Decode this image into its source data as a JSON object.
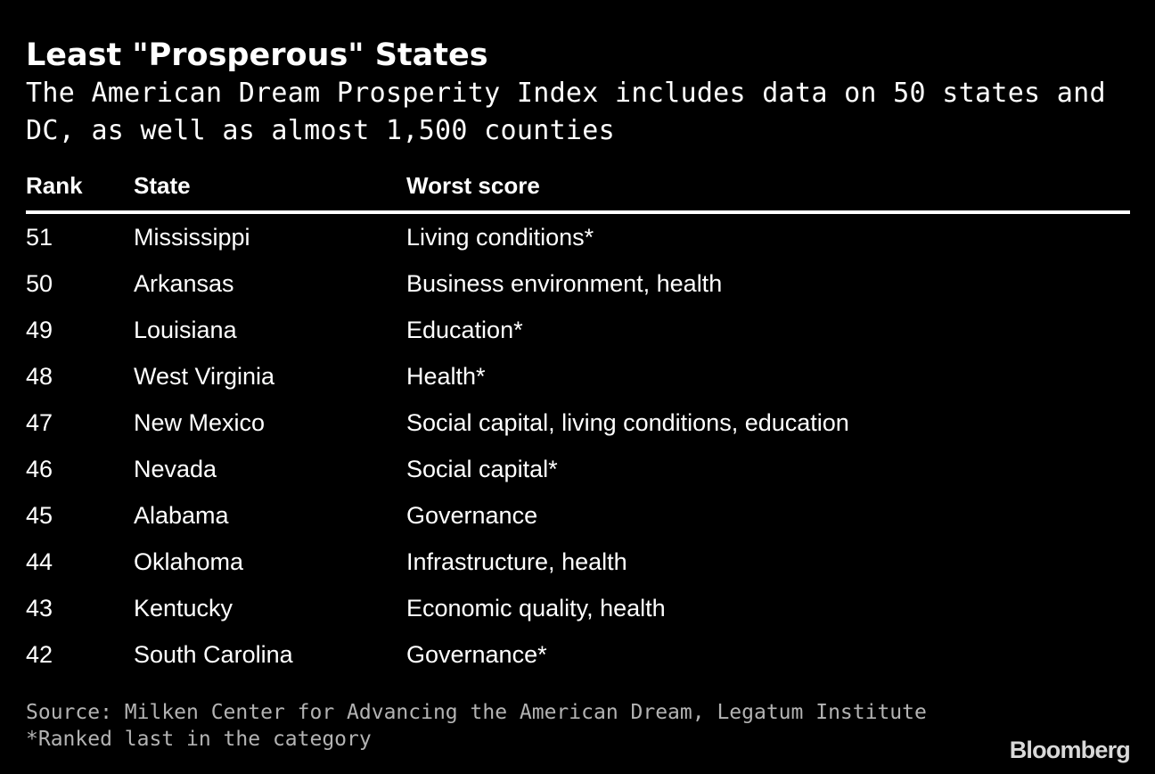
{
  "title": "Least \"Prosperous\" States",
  "subtitle": "The American Dream Prosperity Index includes data on 50 states and DC, as well as almost 1,500 counties",
  "chart_data": {
    "type": "table",
    "title": "Least \"Prosperous\" States",
    "subtitle": "The American Dream Prosperity Index includes data on 50 states and DC, as well as almost 1,500 counties",
    "columns": [
      "Rank",
      "State",
      "Worst score"
    ],
    "rows": [
      [
        "51",
        "Mississippi",
        "Living conditions*"
      ],
      [
        "50",
        "Arkansas",
        "Business environment, health"
      ],
      [
        "49",
        "Louisiana",
        "Education*"
      ],
      [
        "48",
        "West Virginia",
        "Health*"
      ],
      [
        "47",
        "New Mexico",
        "Social capital, living conditions, education"
      ],
      [
        "46",
        "Nevada",
        "Social capital*"
      ],
      [
        "45",
        "Alabama",
        "Governance"
      ],
      [
        "44",
        "Oklahoma",
        "Infrastructure, health"
      ],
      [
        "43",
        "Kentucky",
        "Economic quality, health"
      ],
      [
        "42",
        "South Carolina",
        "Governance*"
      ]
    ]
  },
  "footer": {
    "source": "Source: Milken Center for Advancing the American Dream, Legatum Institute",
    "note": "*Ranked last in the category"
  },
  "brand": {
    "logo_text": "Bloomberg"
  },
  "colors": {
    "background": "#000000",
    "text": "#ffffff",
    "footnote": "#b3b3b3"
  }
}
